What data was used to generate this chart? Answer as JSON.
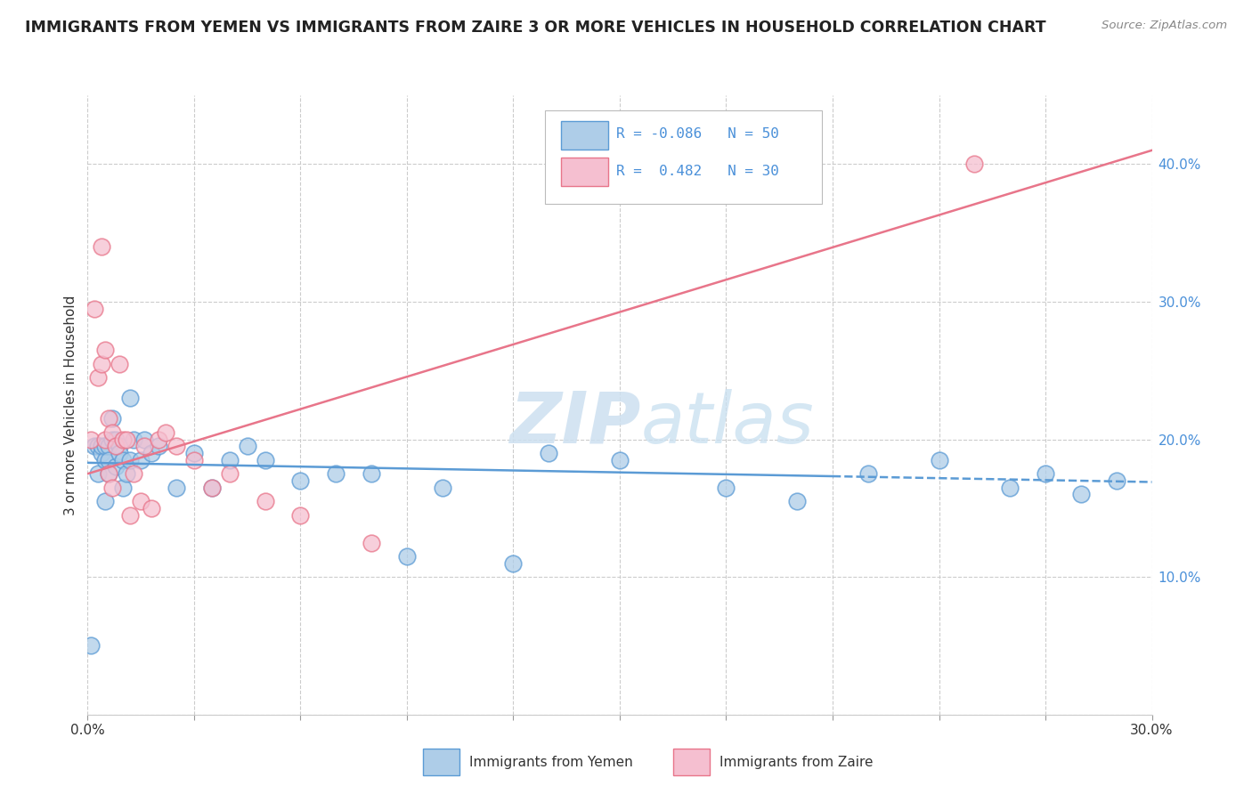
{
  "title": "IMMIGRANTS FROM YEMEN VS IMMIGRANTS FROM ZAIRE 3 OR MORE VEHICLES IN HOUSEHOLD CORRELATION CHART",
  "source": "Source: ZipAtlas.com",
  "xlabel_legend_left": "Immigrants from Yemen",
  "xlabel_legend_right": "Immigrants from Zaire",
  "ylabel": "3 or more Vehicles in Household",
  "xlim": [
    0.0,
    0.3
  ],
  "ylim": [
    0.0,
    0.45
  ],
  "color_yemen": "#aecde8",
  "color_zaire": "#f5bfd0",
  "color_line_yemen": "#5b9bd5",
  "color_line_zaire": "#e8758a",
  "watermark_zip": "ZIP",
  "watermark_atlas": "atlas",
  "yemen_scatter_x": [
    0.001,
    0.002,
    0.003,
    0.003,
    0.004,
    0.004,
    0.005,
    0.005,
    0.005,
    0.006,
    0.006,
    0.006,
    0.007,
    0.007,
    0.008,
    0.008,
    0.009,
    0.009,
    0.01,
    0.01,
    0.011,
    0.012,
    0.012,
    0.013,
    0.015,
    0.016,
    0.018,
    0.02,
    0.025,
    0.03,
    0.035,
    0.04,
    0.045,
    0.05,
    0.06,
    0.07,
    0.08,
    0.09,
    0.1,
    0.12,
    0.13,
    0.15,
    0.18,
    0.2,
    0.22,
    0.24,
    0.26,
    0.27,
    0.28,
    0.29
  ],
  "yemen_scatter_y": [
    0.05,
    0.195,
    0.195,
    0.175,
    0.19,
    0.195,
    0.155,
    0.185,
    0.195,
    0.195,
    0.185,
    0.175,
    0.215,
    0.2,
    0.2,
    0.18,
    0.195,
    0.19,
    0.165,
    0.185,
    0.175,
    0.23,
    0.185,
    0.2,
    0.185,
    0.2,
    0.19,
    0.195,
    0.165,
    0.19,
    0.165,
    0.185,
    0.195,
    0.185,
    0.17,
    0.175,
    0.175,
    0.115,
    0.165,
    0.11,
    0.19,
    0.185,
    0.165,
    0.155,
    0.175,
    0.185,
    0.165,
    0.175,
    0.16,
    0.17
  ],
  "zaire_scatter_x": [
    0.001,
    0.002,
    0.003,
    0.004,
    0.004,
    0.005,
    0.005,
    0.006,
    0.006,
    0.007,
    0.007,
    0.008,
    0.009,
    0.01,
    0.011,
    0.012,
    0.013,
    0.015,
    0.016,
    0.018,
    0.02,
    0.022,
    0.025,
    0.03,
    0.035,
    0.04,
    0.05,
    0.06,
    0.08,
    0.25
  ],
  "zaire_scatter_y": [
    0.2,
    0.295,
    0.245,
    0.255,
    0.34,
    0.265,
    0.2,
    0.215,
    0.175,
    0.165,
    0.205,
    0.195,
    0.255,
    0.2,
    0.2,
    0.145,
    0.175,
    0.155,
    0.195,
    0.15,
    0.2,
    0.205,
    0.195,
    0.185,
    0.165,
    0.175,
    0.155,
    0.145,
    0.125,
    0.4
  ]
}
